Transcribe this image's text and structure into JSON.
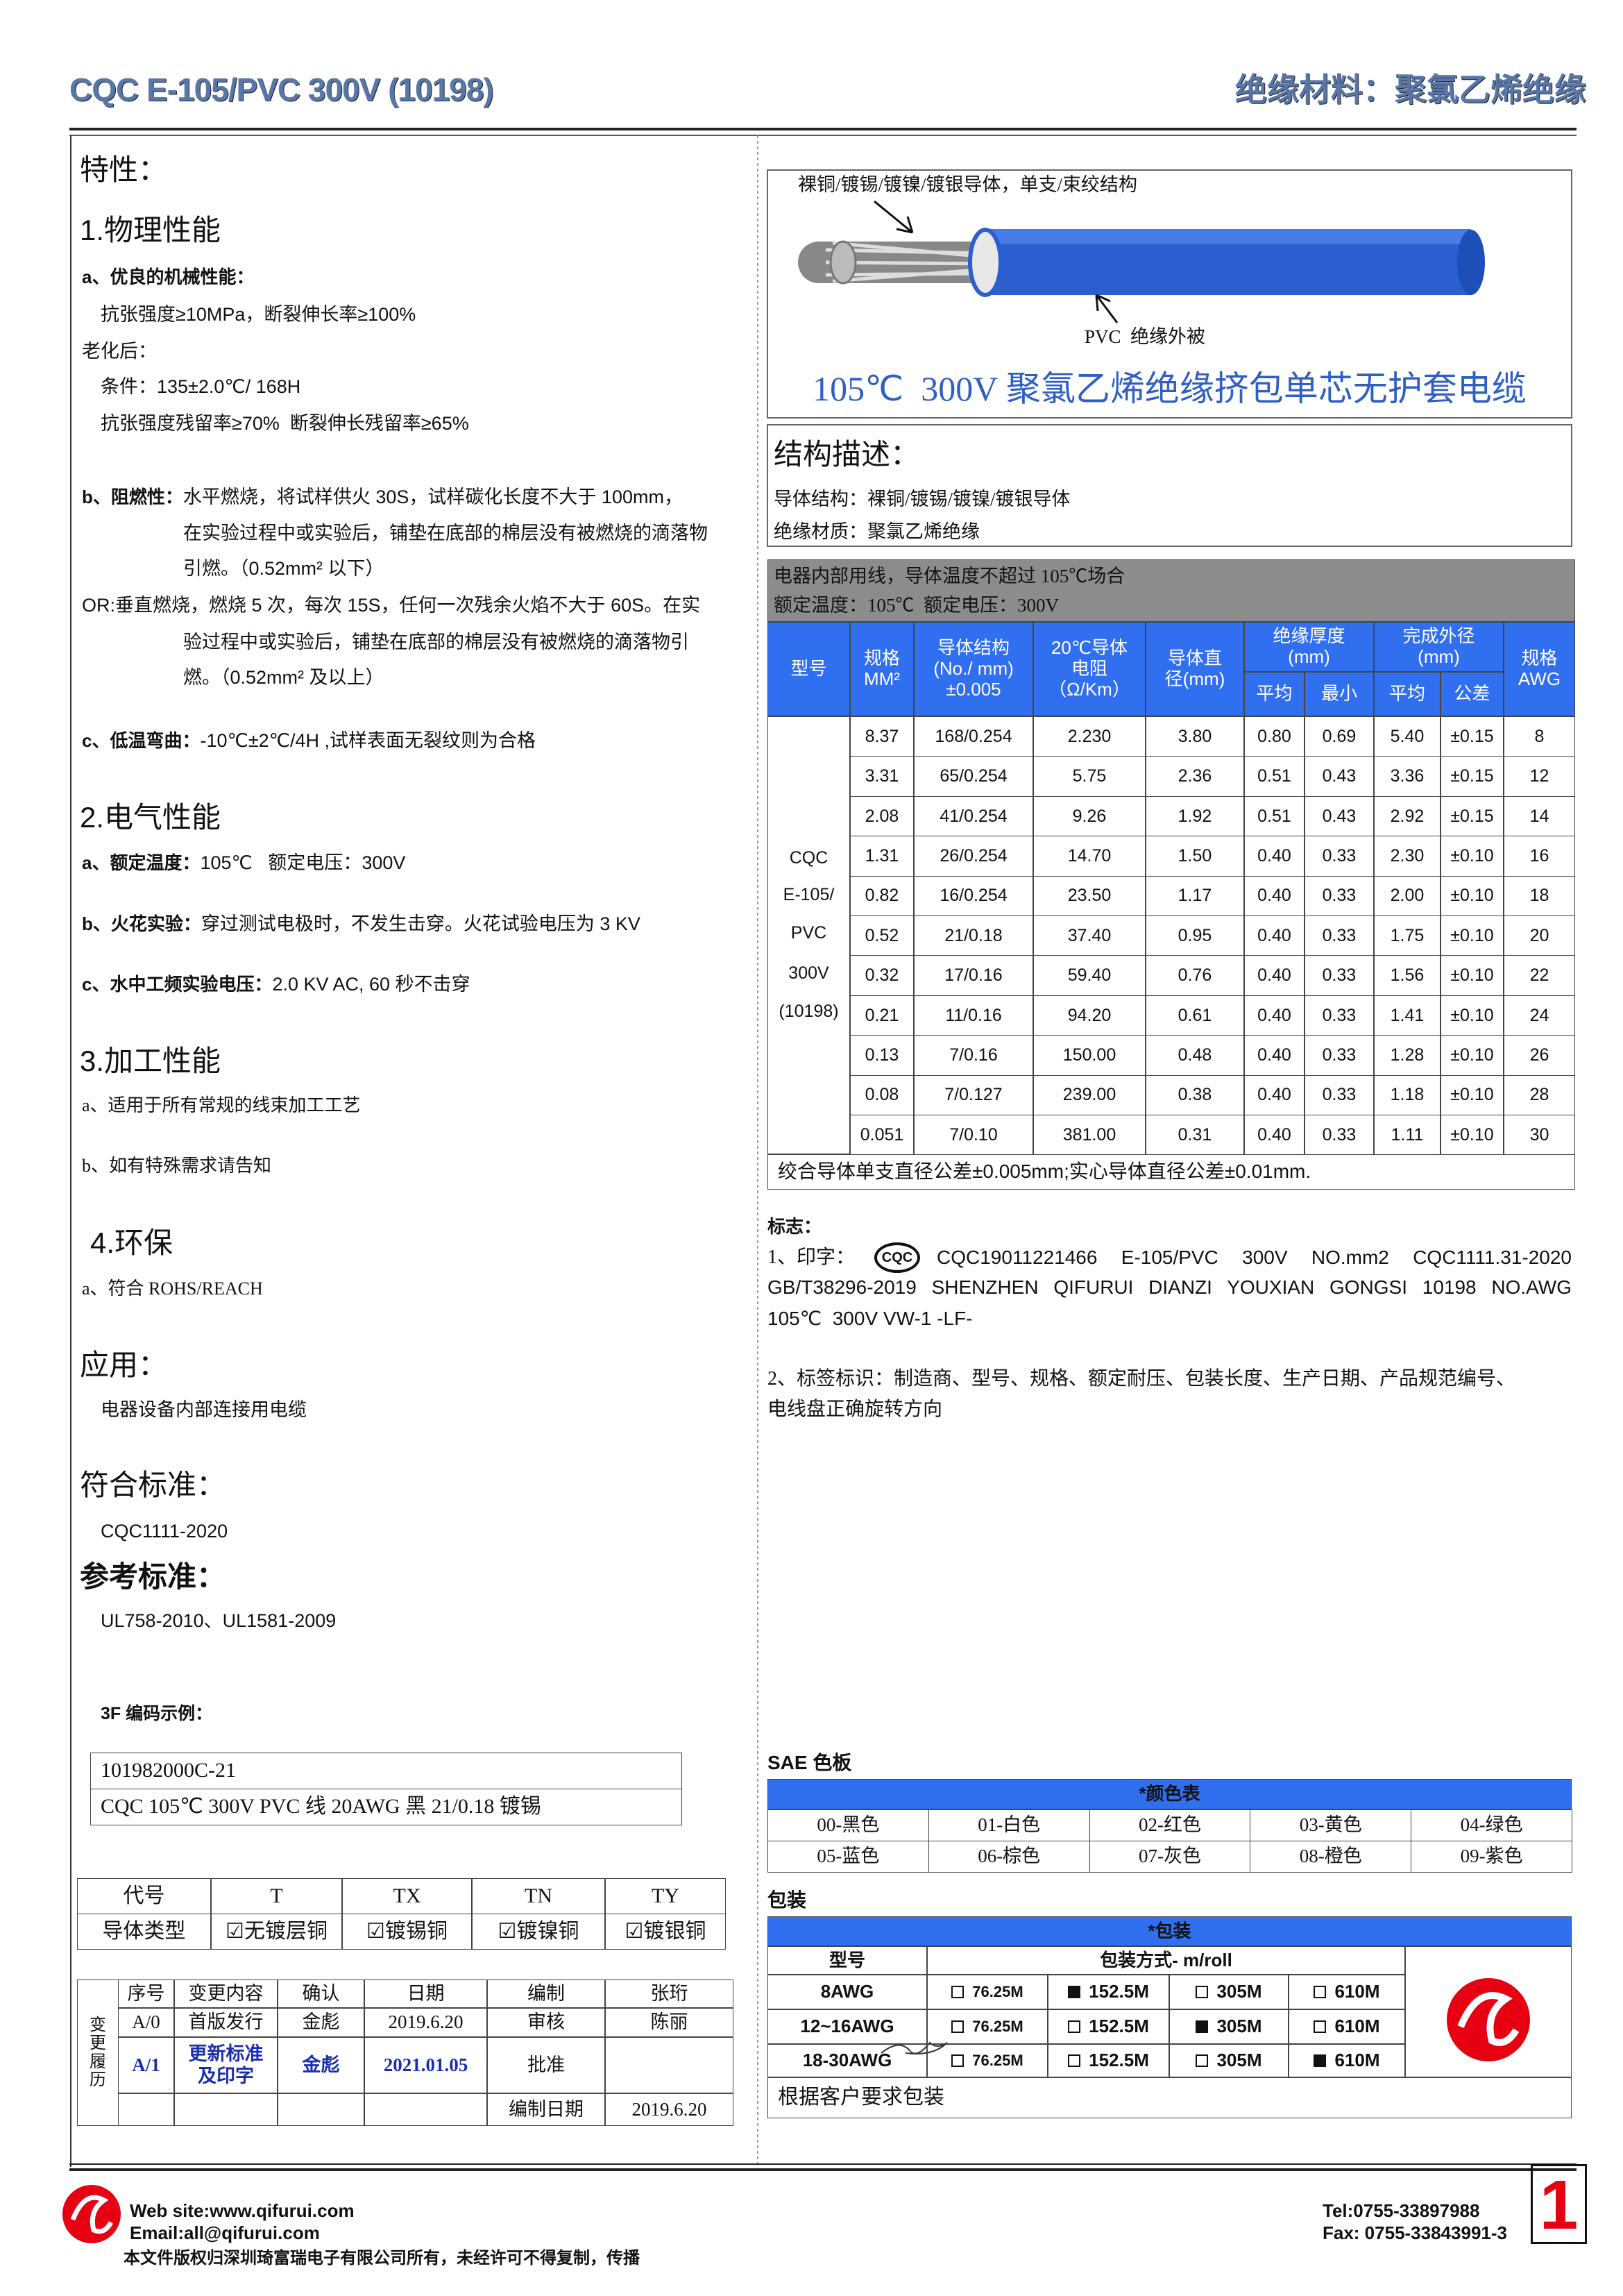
{
  "header": {
    "left": "CQC E-105/PVC 300V (10198)",
    "right": "绝缘材料：聚氯乙烯绝缘"
  },
  "features": {
    "title": "特性：",
    "physical": {
      "title": "1.物理性能",
      "a_label": "a、优良的机械性能：",
      "a_lines": [
        "抗张强度≥10MPa，断裂伸长率≥100%",
        "老化后：",
        "条件：135±2.0℃/ 168H",
        "抗张强度残留率≥70%  断裂伸长残留率≥65%"
      ],
      "b_label": "b、阻燃性：",
      "b_lines": [
        "水平燃烧，将试样供火 30S，试样碳化长度不大于 100mm，",
        "在实验过程中或实验后，铺垫在底部的棉层没有被燃烧的滴落物",
        "引燃。（0.52mm² 以下）"
      ],
      "or_lines": [
        "OR:垂直燃烧，燃烧 5 次，每次 15S，任何一次残余火焰不大于 60S。在实",
        "验过程中或实验后，铺垫在底部的棉层没有被燃烧的滴落物引",
        "燃。（0.52mm² 及以上）"
      ],
      "c_label": "c、低温弯曲：",
      "c_text": "-10℃±2℃/4H ,试样表面无裂纹则为合格"
    },
    "electrical": {
      "title": "2.电气性能",
      "items": [
        {
          "label": "a、额定温度：",
          "text": "105℃   额定电压：300V"
        },
        {
          "label": "b、火花实验：",
          "text": "穿过测试电极时，不发生击穿。火花试验电压为 3 KV"
        },
        {
          "label": "c、水中工频实验电压：",
          "text": "2.0 KV AC, 60 秒不击穿"
        }
      ]
    },
    "processing": {
      "title": "3.加工性能",
      "items": [
        "a、适用于所有常规的线束加工工艺",
        "b、如有特殊需求请告知"
      ]
    },
    "environment": {
      "title": "4.环保",
      "items": [
        "a、符合 ROHS/REACH"
      ]
    }
  },
  "application": {
    "title": "应用：",
    "text": "电器设备内部连接用电缆"
  },
  "standard": {
    "title": "符合标准：",
    "text": "CQC1111-2020"
  },
  "reference": {
    "title": "参考标准：",
    "text": "UL758-2010、UL1581-2009"
  },
  "code_example": {
    "title": "3F 编码示例：",
    "rows": [
      "101982000C-21",
      "CQC 105℃  300V PVC 线    20AWG  黑  21/0.18 镀锡"
    ]
  },
  "plating_table": {
    "headers": [
      "代号",
      "T",
      "TX",
      "TN",
      "TY"
    ],
    "row": [
      "导体类型",
      "☑无镀层铜",
      "☑镀锡铜",
      "☑镀镍铜",
      "☑镀银铜"
    ]
  },
  "revision": {
    "side": "变\n更\n履\n历",
    "headers": [
      "序号",
      "变更内容",
      "确认",
      "日期",
      "编制",
      "张珩"
    ],
    "rows": [
      [
        "A/0",
        "首版发行",
        "金彪",
        "2019.6.20",
        "审核",
        "陈丽"
      ],
      [
        "A/1",
        "更新标准\n及印字",
        "金彪",
        "2021.01.05",
        "批准"
      ]
    ],
    "date_label": "编制日期",
    "date": "2019.6.20"
  },
  "diagram": {
    "conductor_label": "裸铜/镀锡/镀镍/镀银导体，单支/束绞结构",
    "insulation_label": "PVC  绝缘外被",
    "caption": "105℃  300V 聚氯乙烯绝缘挤包单芯无护套电缆"
  },
  "structure": {
    "title": "结构描述：",
    "lines": [
      "导体结构：裸铜/镀锡/镀镍/镀银导体",
      "绝缘材质：聚氯乙烯绝缘"
    ]
  },
  "spec_table": {
    "notes": [
      "电器内部用线，导体温度不超过 105℃场合",
      "额定温度：105℃  额定电压：300V"
    ],
    "headers": [
      "型号",
      "规格\nMM²",
      "导体结构\n(No./ mm)\n±0.005",
      "20℃导体\n电阻\n（Ω/Km）",
      "导体直\n径(mm)",
      "绝缘厚度\n(mm)",
      "完成外径\n(mm)",
      "规格\nAWG"
    ],
    "sub_headers": [
      "平均",
      "最小",
      "平均",
      "公差"
    ],
    "model": [
      "CQC",
      "E-105/",
      "PVC",
      "300V",
      "(10198)"
    ],
    "rows": [
      [
        "8.37",
        "168/0.254",
        "2.230",
        "3.80",
        "0.80",
        "0.69",
        "5.40",
        "±0.15",
        "8"
      ],
      [
        "3.31",
        "65/0.254",
        "5.75",
        "2.36",
        "0.51",
        "0.43",
        "3.36",
        "±0.15",
        "12"
      ],
      [
        "2.08",
        "41/0.254",
        "9.26",
        "1.92",
        "0.51",
        "0.43",
        "2.92",
        "±0.15",
        "14"
      ],
      [
        "1.31",
        "26/0.254",
        "14.70",
        "1.50",
        "0.40",
        "0.33",
        "2.30",
        "±0.10",
        "16"
      ],
      [
        "0.82",
        "16/0.254",
        "23.50",
        "1.17",
        "0.40",
        "0.33",
        "2.00",
        "±0.10",
        "18"
      ],
      [
        "0.52",
        "21/0.18",
        "37.40",
        "0.95",
        "0.40",
        "0.33",
        "1.75",
        "±0.10",
        "20"
      ],
      [
        "0.32",
        "17/0.16",
        "59.40",
        "0.76",
        "0.40",
        "0.33",
        "1.56",
        "±0.10",
        "22"
      ],
      [
        "0.21",
        "11/0.16",
        "94.20",
        "0.61",
        "0.40",
        "0.33",
        "1.41",
        "±0.10",
        "24"
      ],
      [
        "0.13",
        "7/0.16",
        "150.00",
        "0.48",
        "0.40",
        "0.33",
        "1.28",
        "±0.10",
        "26"
      ],
      [
        "0.08",
        "7/0.127",
        "239.00",
        "0.38",
        "0.40",
        "0.33",
        "1.18",
        "±0.10",
        "28"
      ],
      [
        "0.051",
        "7/0.10",
        "381.00",
        "0.31",
        "0.40",
        "0.33",
        "1.11",
        "±0.10",
        "30"
      ]
    ],
    "footnote": "绞合导体单支直径公差±0.005mm;实心导体直径公差±0.01mm."
  },
  "marking": {
    "title": "标志：",
    "item1_prefix": "1、印字：",
    "logo_text": "CQC",
    "item1_lines": [
      "CQC19011221466  E-105/PVC  300V  NO.mm2  CQC1111.31-2020",
      "GB/T38296-2019 SHENZHEN QIFURUI DIANZI YOUXIAN GONGSI     10198 NO.AWG",
      "105℃  300V VW-1 -LF-"
    ],
    "item2_lines": [
      "2、标签标识：制造商、型号、规格、额定耐压、包装长度、生产日期、产品规范编号、",
      "电线盘正确旋转方向"
    ]
  },
  "sae": {
    "title": "SAE 色板",
    "header": "*颜色表",
    "colors": [
      "00-黑色",
      "01-白色",
      "02-红色",
      "03-黄色",
      "04-绿色",
      "05-蓝色",
      "06-棕色",
      "07-灰色",
      "08-橙色",
      "09-紫色"
    ]
  },
  "packaging": {
    "title": "包装",
    "header": "*包装",
    "col1": "型号",
    "col2": "包装方式- m/roll",
    "options": [
      "76.25M",
      "152.5M",
      "305M",
      "610M"
    ],
    "rows": [
      {
        "model": "8AWG",
        "selected": 1
      },
      {
        "model": "12~16AWG",
        "selected": 2
      },
      {
        "model": "18-30AWG",
        "selected": 3
      }
    ],
    "note": "根据客户要求包装"
  },
  "footer": {
    "web": "Web site:www.qifurui.com",
    "email": "Email:all@qifurui.com",
    "tel": "Tel:0755-33897988",
    "fax": "Fax: 0755-33843991-3",
    "page": "1",
    "copyright": "本文件版权归深圳琦富瑞电子有限公司所有，未经许可不得复制，传播"
  }
}
